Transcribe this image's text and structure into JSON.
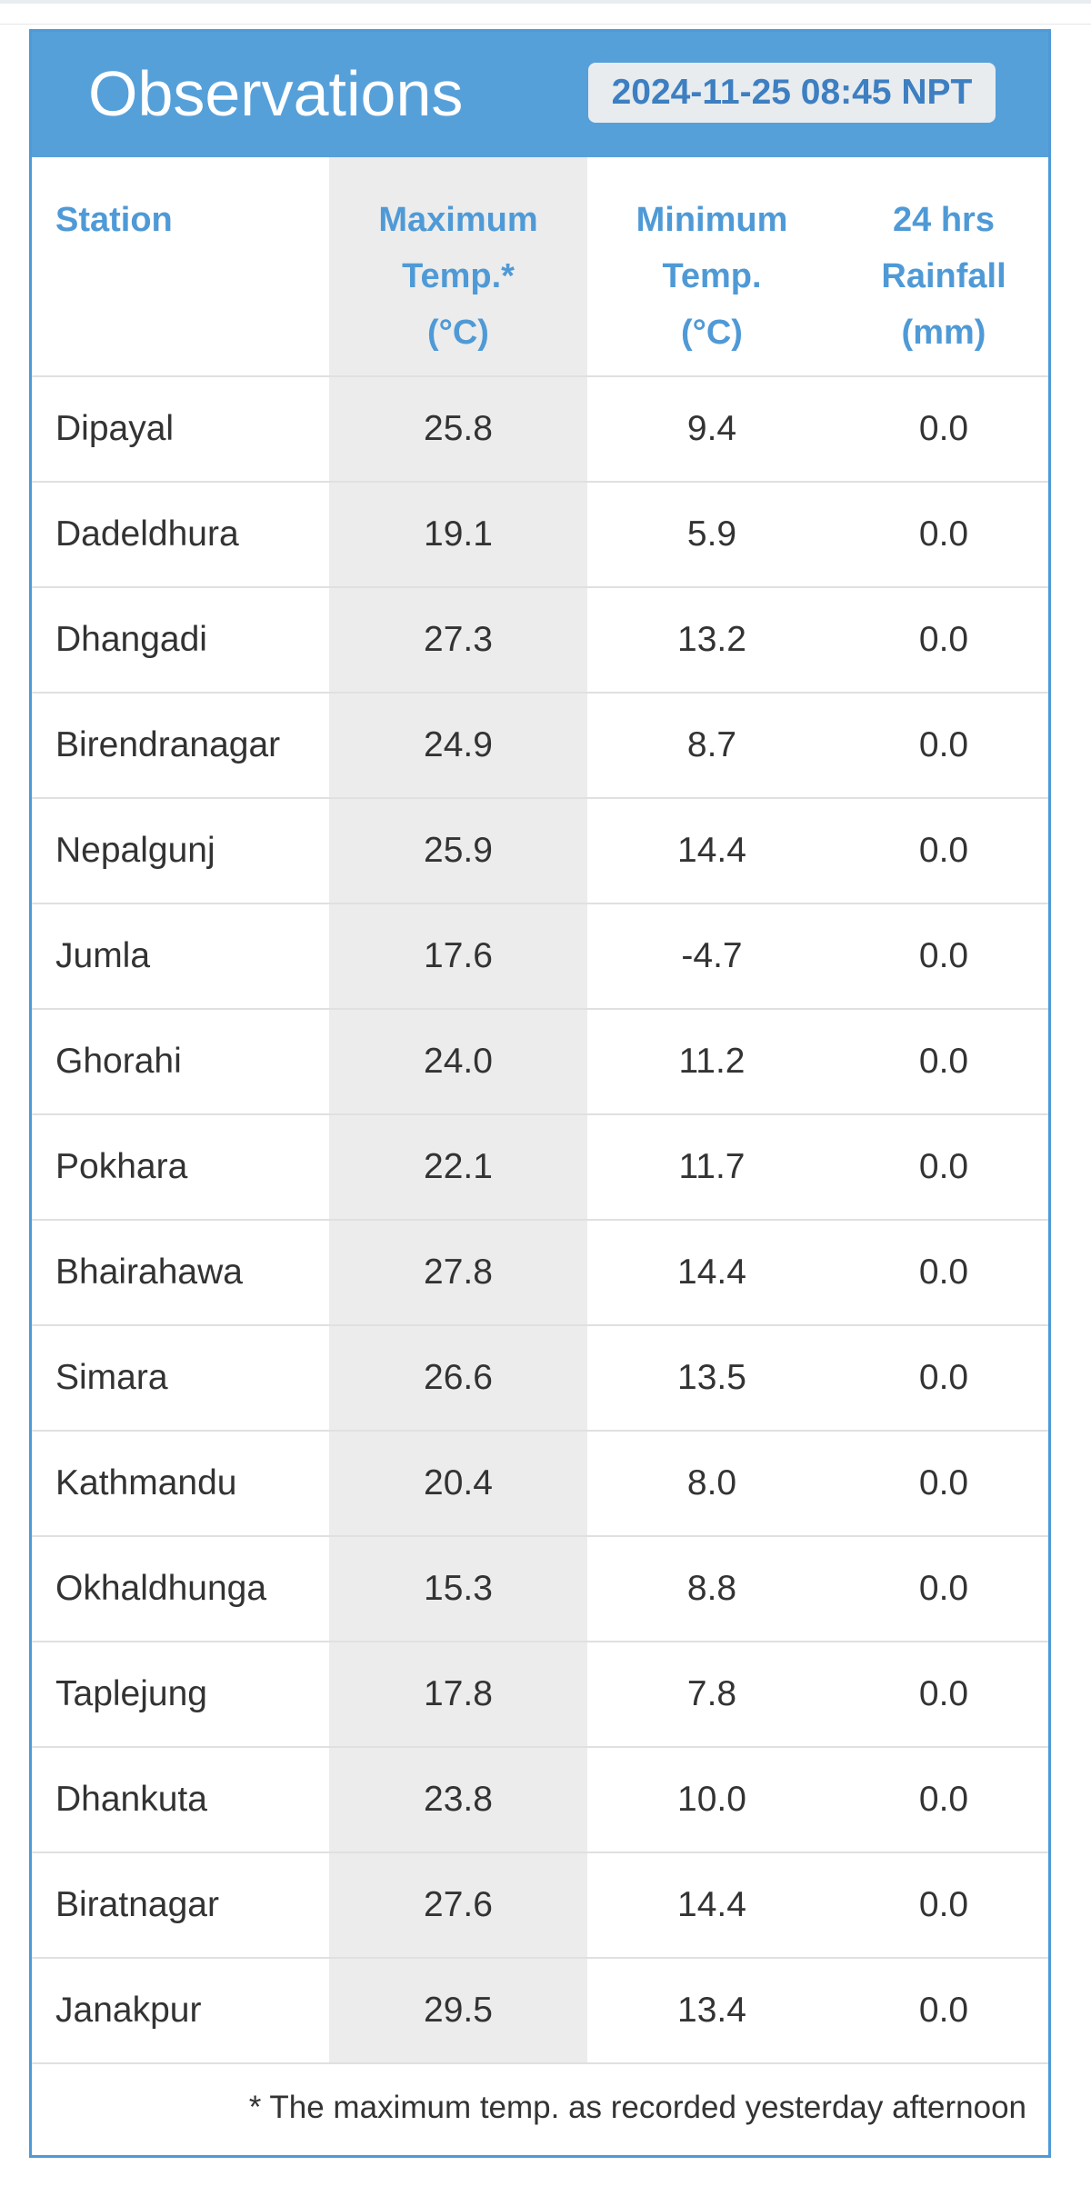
{
  "panel": {
    "title": "Observations",
    "timestamp": "2024-11-25 08:45 NPT"
  },
  "columns": {
    "station": "Station",
    "max_temp": [
      "Maximum",
      "Temp.*",
      "(°C)"
    ],
    "min_temp": [
      "Minimum",
      "Temp.",
      "(°C)"
    ],
    "rainfall": [
      "24 hrs",
      "Rainfall",
      "(mm)"
    ]
  },
  "rows": [
    {
      "station": "Dipayal",
      "max": "25.8",
      "min": "9.4",
      "rain": "0.0"
    },
    {
      "station": "Dadeldhura",
      "max": "19.1",
      "min": "5.9",
      "rain": "0.0"
    },
    {
      "station": "Dhangadi",
      "max": "27.3",
      "min": "13.2",
      "rain": "0.0"
    },
    {
      "station": "Birendranagar",
      "max": "24.9",
      "min": "8.7",
      "rain": "0.0"
    },
    {
      "station": "Nepalgunj",
      "max": "25.9",
      "min": "14.4",
      "rain": "0.0"
    },
    {
      "station": "Jumla",
      "max": "17.6",
      "min": "-4.7",
      "rain": "0.0"
    },
    {
      "station": "Ghorahi",
      "max": "24.0",
      "min": "11.2",
      "rain": "0.0"
    },
    {
      "station": "Pokhara",
      "max": "22.1",
      "min": "11.7",
      "rain": "0.0"
    },
    {
      "station": "Bhairahawa",
      "max": "27.8",
      "min": "14.4",
      "rain": "0.0"
    },
    {
      "station": "Simara",
      "max": "26.6",
      "min": "13.5",
      "rain": "0.0"
    },
    {
      "station": "Kathmandu",
      "max": "20.4",
      "min": "8.0",
      "rain": "0.0"
    },
    {
      "station": "Okhaldhunga",
      "max": "15.3",
      "min": "8.8",
      "rain": "0.0"
    },
    {
      "station": "Taplejung",
      "max": "17.8",
      "min": "7.8",
      "rain": "0.0"
    },
    {
      "station": "Dhankuta",
      "max": "23.8",
      "min": "10.0",
      "rain": "0.0"
    },
    {
      "station": "Biratnagar",
      "max": "27.6",
      "min": "14.4",
      "rain": "0.0"
    },
    {
      "station": "Janakpur",
      "max": "29.5",
      "min": "13.4",
      "rain": "0.0"
    }
  ],
  "footnote": "* The maximum temp. as recorded yesterday afternoon",
  "colors": {
    "header_bg": "#56a0da",
    "accent": "#4f9ad6",
    "max_column_shade": "#ececec"
  }
}
